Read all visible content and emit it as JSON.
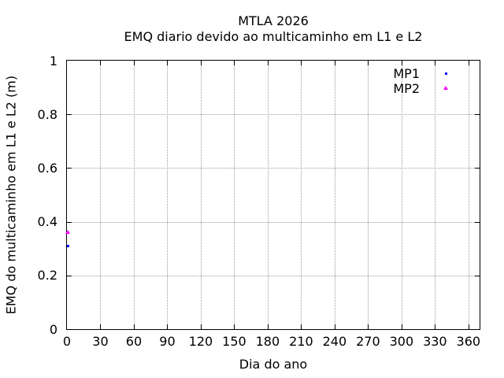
{
  "chart_data": {
    "type": "scatter",
    "title": "MTLA 2026",
    "subtitle": "EMQ diario devido ao multicaminho em L1 e L2",
    "xlabel": "Dia do ano",
    "ylabel": "EMQ do multicaminho em L1 e L2 (m)",
    "xlim": [
      0,
      370
    ],
    "ylim": [
      0,
      1
    ],
    "xticks": [
      0,
      30,
      60,
      90,
      120,
      150,
      180,
      210,
      240,
      270,
      300,
      330,
      360
    ],
    "xtick_labels": [
      "0",
      "30",
      "60",
      "90",
      "120",
      "150",
      "180",
      "210",
      "240",
      "270",
      "300",
      "330",
      "360"
    ],
    "yticks": [
      0,
      0.2,
      0.4,
      0.6,
      0.8,
      1
    ],
    "ytick_labels": [
      "0",
      "0.2",
      "0.4",
      "0.6",
      "0.8",
      "1"
    ],
    "grid": true,
    "legend_position": "top-right-inside",
    "series": [
      {
        "name": "MP1",
        "marker": "square",
        "color": "#0000ff",
        "points": [
          {
            "x": 1,
            "y": 0.31
          }
        ]
      },
      {
        "name": "MP2",
        "marker": "triangle",
        "color": "#ff00ff",
        "points": [
          {
            "x": 1,
            "y": 0.36
          }
        ]
      }
    ]
  }
}
